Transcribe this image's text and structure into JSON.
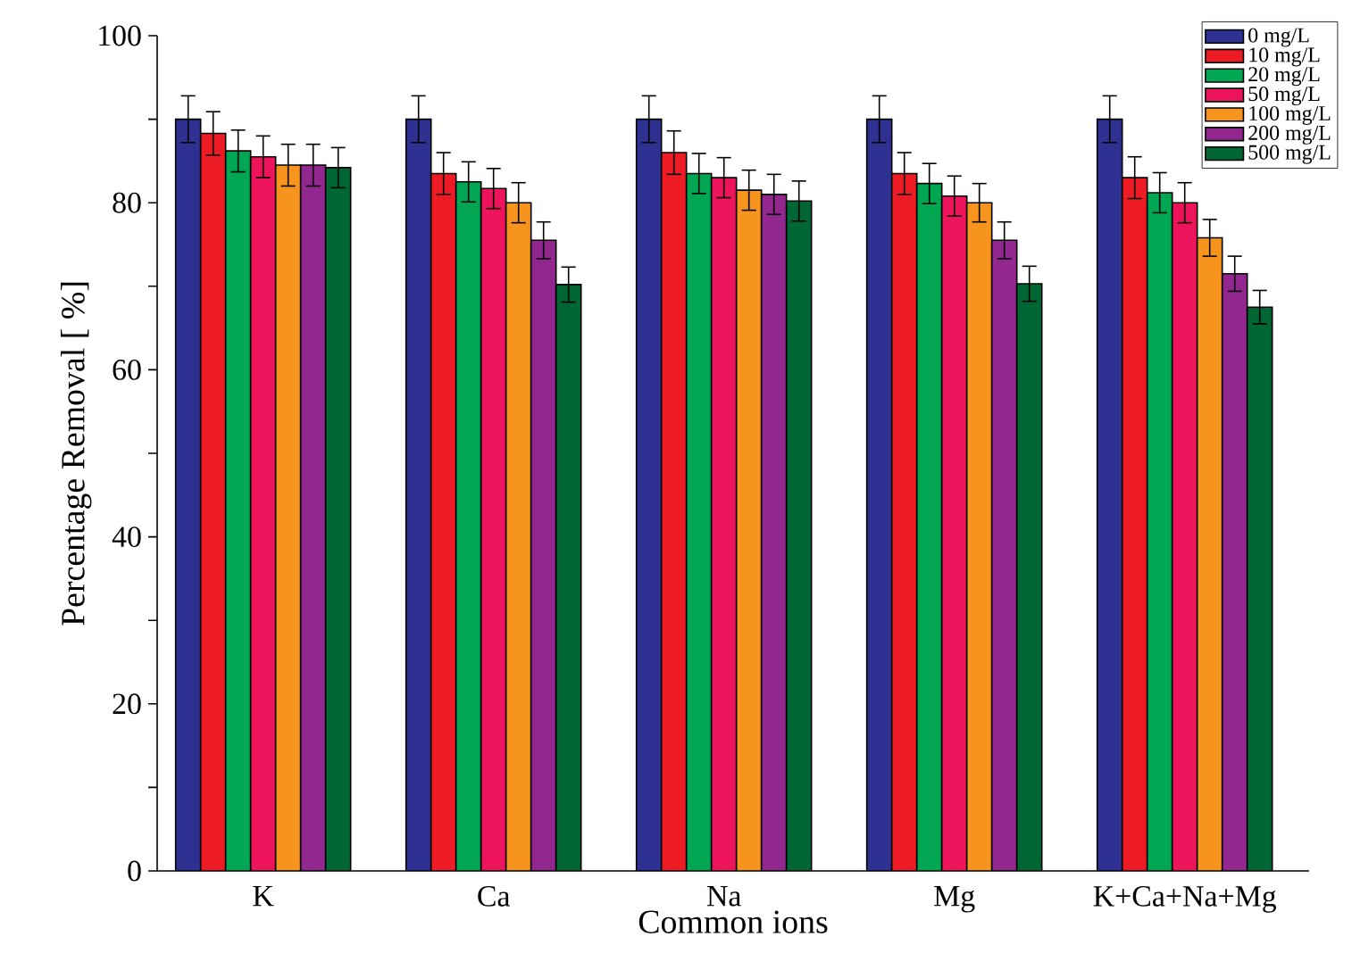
{
  "chart_data": {
    "type": "bar",
    "xlabel": "Common ions",
    "ylabel": "Percentage Removal [ %]",
    "categories": [
      "K",
      "Ca",
      "Na",
      "Mg",
      "K+Ca+Na+Mg"
    ],
    "series": [
      {
        "name": "0 mg/L",
        "color": "#2e3192",
        "values": [
          90,
          90,
          90,
          90,
          90
        ],
        "errors": [
          2.8,
          2.8,
          2.8,
          2.8,
          2.8
        ]
      },
      {
        "name": "10 mg/L",
        "color": "#ed1c24",
        "values": [
          88.3,
          83.5,
          86,
          83.5,
          83
        ],
        "errors": [
          2.6,
          2.5,
          2.6,
          2.5,
          2.5
        ]
      },
      {
        "name": "20 mg/L",
        "color": "#00a651",
        "values": [
          86.2,
          82.5,
          83.5,
          82.3,
          81.2
        ],
        "errors": [
          2.5,
          2.4,
          2.4,
          2.4,
          2.4
        ]
      },
      {
        "name": "50 mg/L",
        "color": "#ed145b",
        "values": [
          85.5,
          81.7,
          83,
          80.8,
          80
        ],
        "errors": [
          2.5,
          2.4,
          2.4,
          2.4,
          2.4
        ]
      },
      {
        "name": "100 mg/L",
        "color": "#f7941d",
        "values": [
          84.5,
          80,
          81.5,
          80,
          75.8
        ],
        "errors": [
          2.5,
          2.4,
          2.4,
          2.3,
          2.2
        ]
      },
      {
        "name": "200 mg/L",
        "color": "#92278f",
        "values": [
          84.5,
          75.5,
          81,
          75.5,
          71.5
        ],
        "errors": [
          2.5,
          2.2,
          2.4,
          2.2,
          2.1
        ]
      },
      {
        "name": "500 mg/L",
        "color": "#006633",
        "values": [
          84.2,
          70.2,
          80.2,
          70.3,
          67.5
        ],
        "errors": [
          2.4,
          2.1,
          2.4,
          2.1,
          2.0
        ]
      }
    ],
    "ylim": [
      0,
      100
    ],
    "yticks": [
      0,
      {
        "value": 10,
        "label": null
      },
      20,
      {
        "value": 30,
        "label": null
      },
      40,
      {
        "value": 50,
        "label": null
      },
      60,
      {
        "value": 70,
        "label": null
      },
      80,
      {
        "value": 90,
        "label": null
      },
      100
    ],
    "legend": "top right",
    "grid": false
  }
}
